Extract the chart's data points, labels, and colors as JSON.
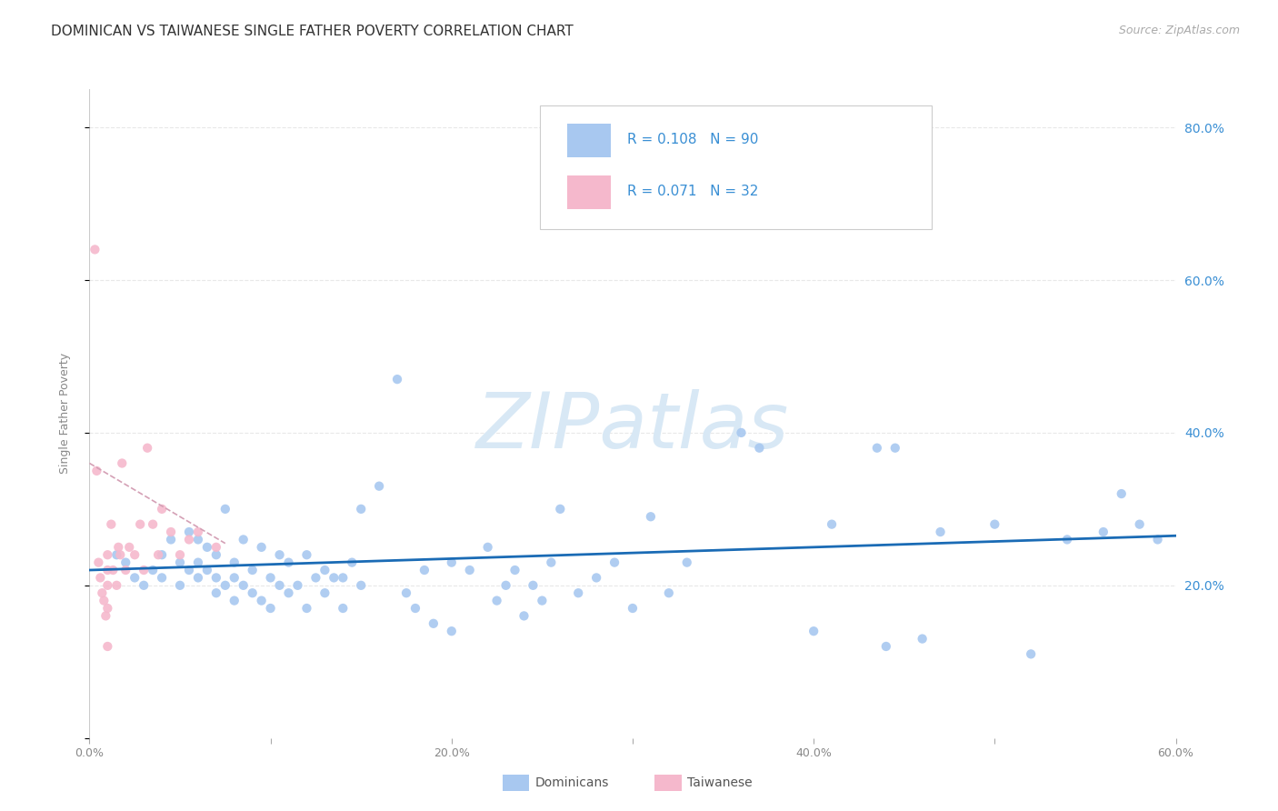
{
  "title": "DOMINICAN VS TAIWANESE SINGLE FATHER POVERTY CORRELATION CHART",
  "source": "Source: ZipAtlas.com",
  "ylabel": "Single Father Poverty",
  "watermark": "ZIPatlas",
  "xlim": [
    0.0,
    0.6
  ],
  "ylim": [
    0.0,
    0.85
  ],
  "xtick_vals": [
    0.0,
    0.1,
    0.2,
    0.3,
    0.4,
    0.5,
    0.6
  ],
  "ytick_vals": [
    0.0,
    0.2,
    0.4,
    0.6,
    0.8
  ],
  "right_ytick_vals": [
    0.2,
    0.4,
    0.6,
    0.8
  ],
  "blue_scatter_x": [
    0.015,
    0.02,
    0.025,
    0.03,
    0.035,
    0.04,
    0.04,
    0.045,
    0.05,
    0.05,
    0.055,
    0.055,
    0.06,
    0.06,
    0.06,
    0.065,
    0.065,
    0.07,
    0.07,
    0.07,
    0.075,
    0.075,
    0.08,
    0.08,
    0.08,
    0.085,
    0.085,
    0.09,
    0.09,
    0.095,
    0.095,
    0.1,
    0.1,
    0.105,
    0.105,
    0.11,
    0.11,
    0.115,
    0.12,
    0.12,
    0.125,
    0.13,
    0.13,
    0.135,
    0.14,
    0.14,
    0.145,
    0.15,
    0.15,
    0.16,
    0.17,
    0.175,
    0.18,
    0.185,
    0.19,
    0.2,
    0.2,
    0.21,
    0.22,
    0.225,
    0.23,
    0.235,
    0.24,
    0.245,
    0.25,
    0.255,
    0.26,
    0.27,
    0.28,
    0.29,
    0.3,
    0.31,
    0.32,
    0.33,
    0.36,
    0.37,
    0.4,
    0.41,
    0.44,
    0.46,
    0.47,
    0.5,
    0.52,
    0.54,
    0.56,
    0.57,
    0.58,
    0.59,
    0.435,
    0.445
  ],
  "blue_scatter_y": [
    0.24,
    0.23,
    0.21,
    0.2,
    0.22,
    0.21,
    0.24,
    0.26,
    0.2,
    0.23,
    0.22,
    0.27,
    0.21,
    0.23,
    0.26,
    0.22,
    0.25,
    0.19,
    0.21,
    0.24,
    0.2,
    0.3,
    0.18,
    0.21,
    0.23,
    0.2,
    0.26,
    0.19,
    0.22,
    0.18,
    0.25,
    0.17,
    0.21,
    0.2,
    0.24,
    0.19,
    0.23,
    0.2,
    0.17,
    0.24,
    0.21,
    0.19,
    0.22,
    0.21,
    0.17,
    0.21,
    0.23,
    0.2,
    0.3,
    0.33,
    0.47,
    0.19,
    0.17,
    0.22,
    0.15,
    0.14,
    0.23,
    0.22,
    0.25,
    0.18,
    0.2,
    0.22,
    0.16,
    0.2,
    0.18,
    0.23,
    0.3,
    0.19,
    0.21,
    0.23,
    0.17,
    0.29,
    0.19,
    0.23,
    0.4,
    0.38,
    0.14,
    0.28,
    0.12,
    0.13,
    0.27,
    0.28,
    0.11,
    0.26,
    0.27,
    0.32,
    0.28,
    0.26,
    0.38,
    0.38
  ],
  "pink_scatter_x": [
    0.003,
    0.004,
    0.005,
    0.006,
    0.007,
    0.008,
    0.009,
    0.01,
    0.01,
    0.01,
    0.01,
    0.01,
    0.012,
    0.013,
    0.015,
    0.016,
    0.017,
    0.018,
    0.02,
    0.022,
    0.025,
    0.028,
    0.03,
    0.032,
    0.035,
    0.038,
    0.04,
    0.045,
    0.05,
    0.055,
    0.06,
    0.07
  ],
  "pink_scatter_y": [
    0.64,
    0.35,
    0.23,
    0.21,
    0.19,
    0.18,
    0.16,
    0.24,
    0.22,
    0.2,
    0.17,
    0.12,
    0.28,
    0.22,
    0.2,
    0.25,
    0.24,
    0.36,
    0.22,
    0.25,
    0.24,
    0.28,
    0.22,
    0.38,
    0.28,
    0.24,
    0.3,
    0.27,
    0.24,
    0.26,
    0.27,
    0.25
  ],
  "blue_line_x": [
    0.0,
    0.6
  ],
  "blue_line_y": [
    0.22,
    0.265
  ],
  "pink_line_x": [
    0.0,
    0.075
  ],
  "pink_line_y": [
    0.36,
    0.255
  ],
  "blue_dot_color": "#a8c8f0",
  "pink_dot_color": "#f5b8cc",
  "blue_line_color": "#1a6bb5",
  "pink_line_color": "#d4a0b5",
  "R_blue": 0.108,
  "N_blue": 90,
  "R_pink": 0.071,
  "N_pink": 32,
  "legend_label_blue": "Dominicans",
  "legend_label_pink": "Taiwanese",
  "legend_text_color": "#3a8fd4",
  "axis_text_color": "#888888",
  "right_axis_color": "#3a8fd4",
  "background_color": "#ffffff",
  "title_fontsize": 11,
  "source_fontsize": 9,
  "watermark_color": "#d8e8f5",
  "watermark_fontsize": 62,
  "grid_color": "#e8e8e8",
  "scatter_size": 55
}
